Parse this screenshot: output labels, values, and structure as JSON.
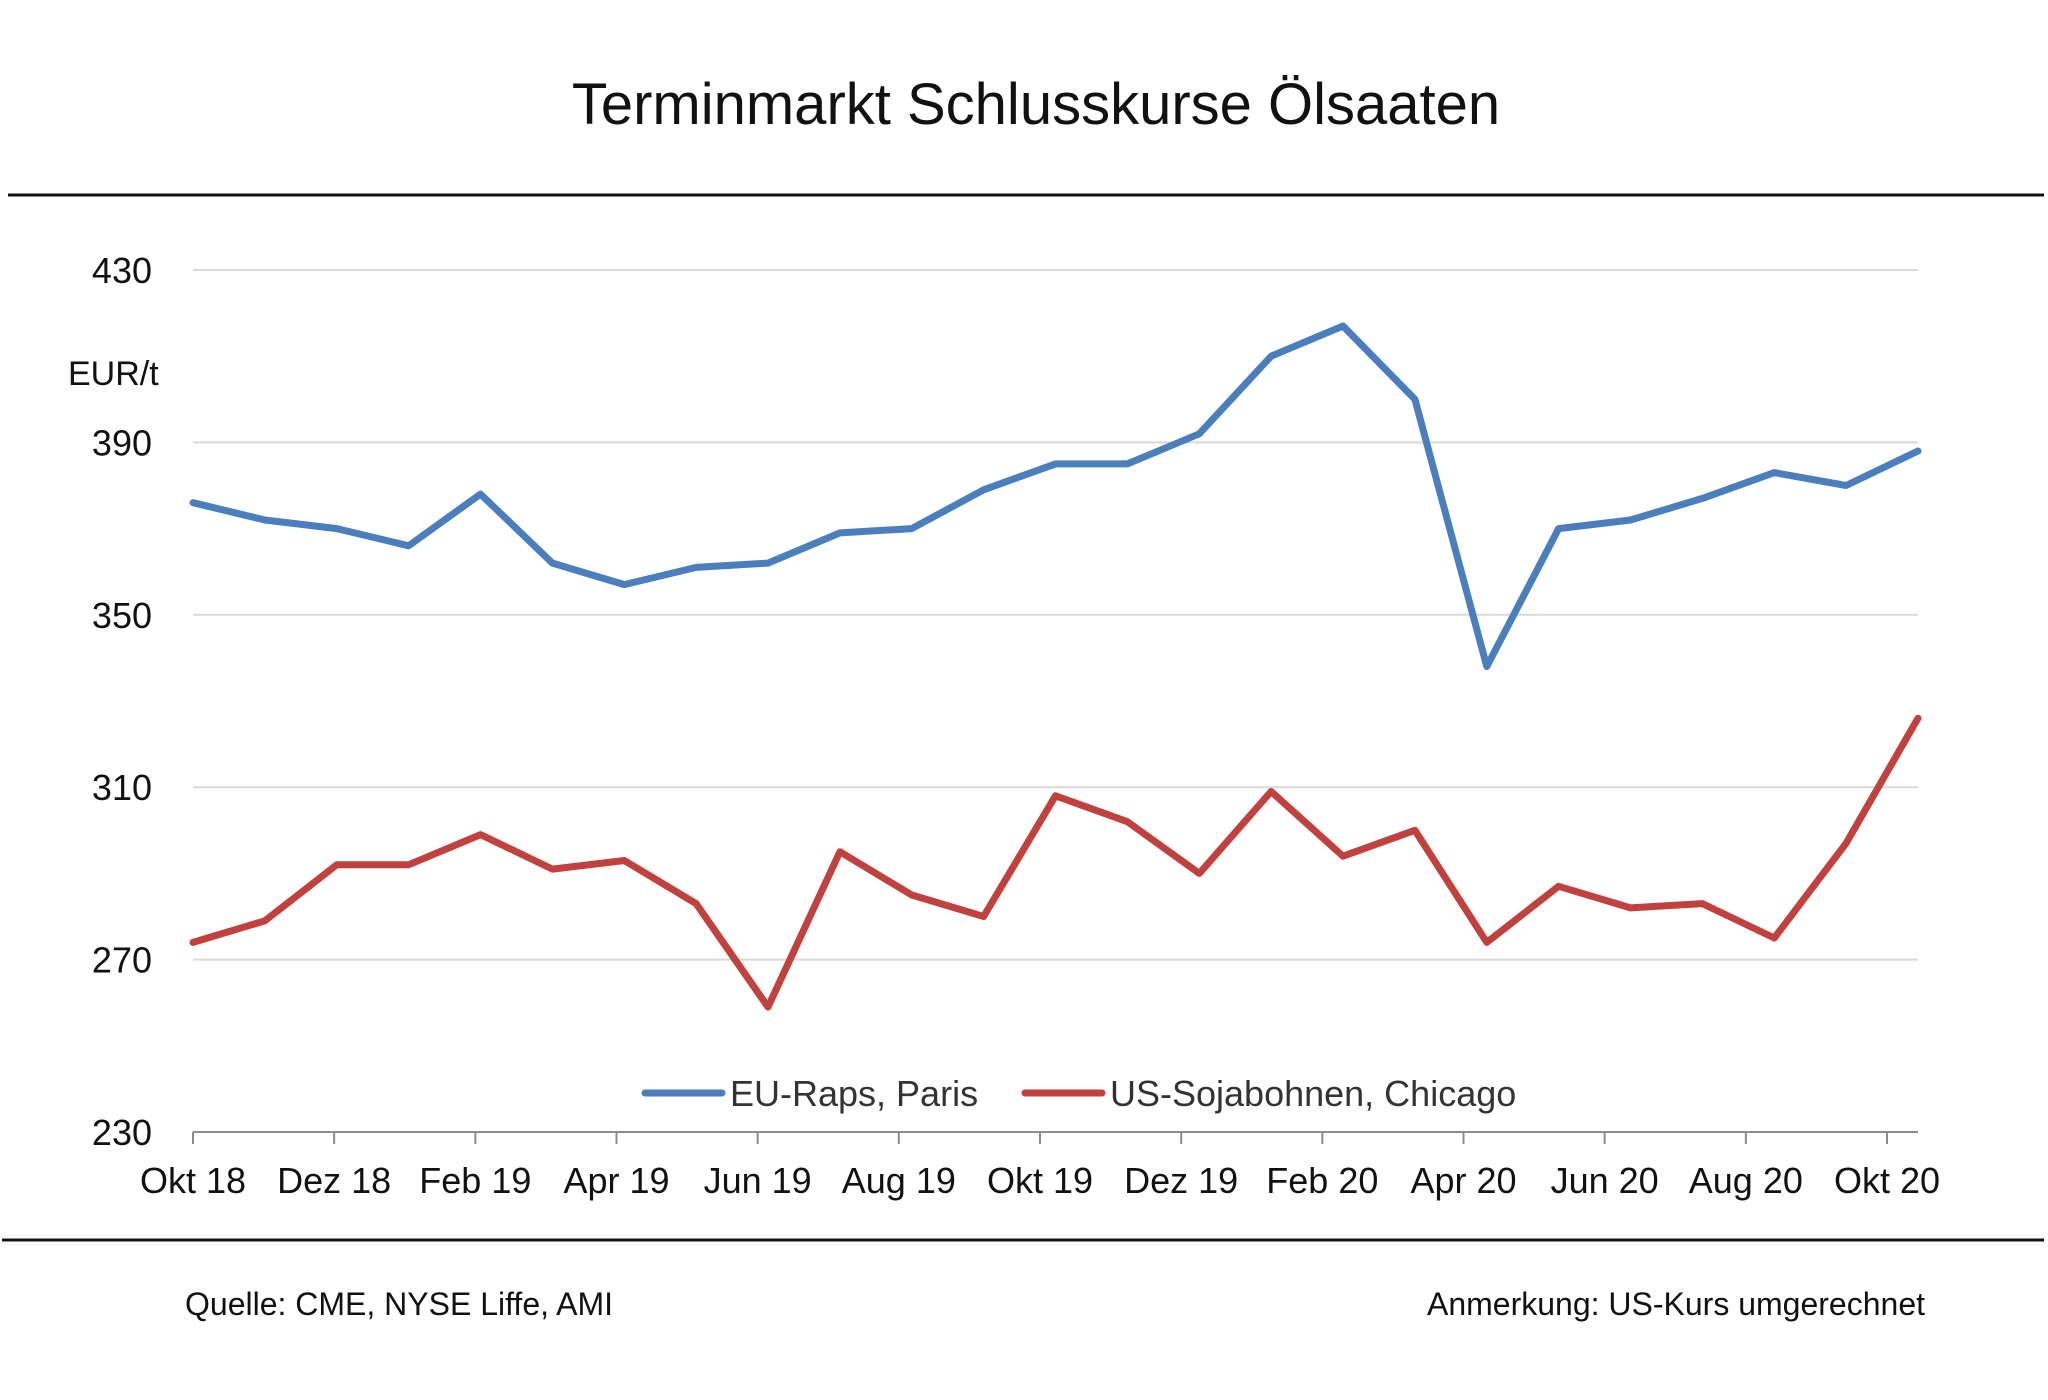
{
  "chart_data": {
    "type": "line",
    "title": "Terminmarkt Schlusskurse  Ölsaaten",
    "ylabel": "EUR/t",
    "ylim": [
      230,
      430
    ],
    "yticks": [
      430,
      390,
      350,
      310,
      270,
      230
    ],
    "grid": true,
    "legend_position": "bottom-center",
    "categories": [
      "Okt 18",
      "Dez 18",
      "Feb 19",
      "Apr 19",
      "Jun 19",
      "Aug 19",
      "Okt 19",
      "Dez 19",
      "Feb 20",
      "Apr 20",
      "Jun 20",
      "Aug 20",
      "Okt 20"
    ],
    "x": [
      "Okt 18",
      "Nov 18",
      "Dez 18",
      "Jan 19",
      "Feb 19",
      "Mär 19",
      "Apr 19",
      "Mai 19",
      "Jun 19",
      "Jul 19",
      "Aug 19",
      "Sep 19",
      "Okt 19",
      "Nov 19",
      "Dez 19",
      "Jan 20",
      "Feb 20",
      "Mär 20",
      "Apr 20",
      "Mai 20",
      "Jun 20",
      "Jul 20",
      "Aug 20",
      "Sep 20",
      "Okt 20"
    ],
    "series": [
      {
        "name": "EU-Raps, Paris",
        "color": "#4a7ebd",
        "values": [
          376,
          372,
          370,
          366,
          378,
          362,
          357,
          361,
          362,
          369,
          370,
          379,
          385,
          385,
          392,
          410,
          417,
          400,
          338,
          370,
          372,
          377,
          383,
          380,
          388
        ]
      },
      {
        "name": "US-Sojabohnen, Chicago",
        "color": "#c0413e",
        "values": [
          274,
          279,
          292,
          292,
          299,
          291,
          293,
          283,
          259,
          295,
          285,
          280,
          308,
          302,
          290,
          309,
          294,
          300,
          274,
          287,
          282,
          283,
          275,
          297,
          326
        ]
      }
    ]
  },
  "footer": {
    "source": "Quelle:  CME, NYSE Liffe, AMI",
    "note": "Anmerkung:  US-Kurs umgerechnet"
  }
}
